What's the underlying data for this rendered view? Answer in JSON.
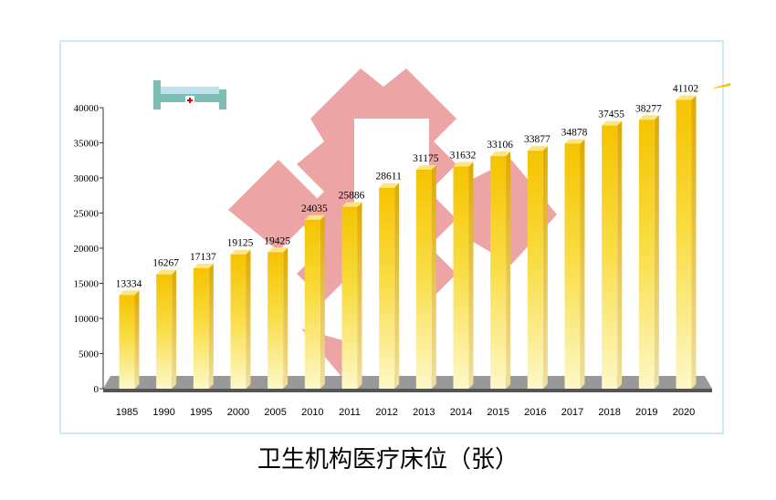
{
  "chart_data": {
    "type": "bar3d",
    "title": "卫生机构医疗床位（张）",
    "categories": [
      "1985",
      "1990",
      "1995",
      "2000",
      "2005",
      "2010",
      "2011",
      "2012",
      "2013",
      "2014",
      "2015",
      "2016",
      "2017",
      "2018",
      "2019",
      "2020"
    ],
    "values": [
      13334,
      16267,
      17137,
      19125,
      19425,
      24035,
      25886,
      28611,
      31175,
      31632,
      33106,
      33877,
      34878,
      37455,
      38277,
      41102
    ],
    "color": "#f5c400",
    "ylim": [
      0,
      40000
    ],
    "yticks": [
      0,
      5000,
      10000,
      15000,
      20000,
      25000,
      30000,
      35000,
      40000
    ]
  }
}
